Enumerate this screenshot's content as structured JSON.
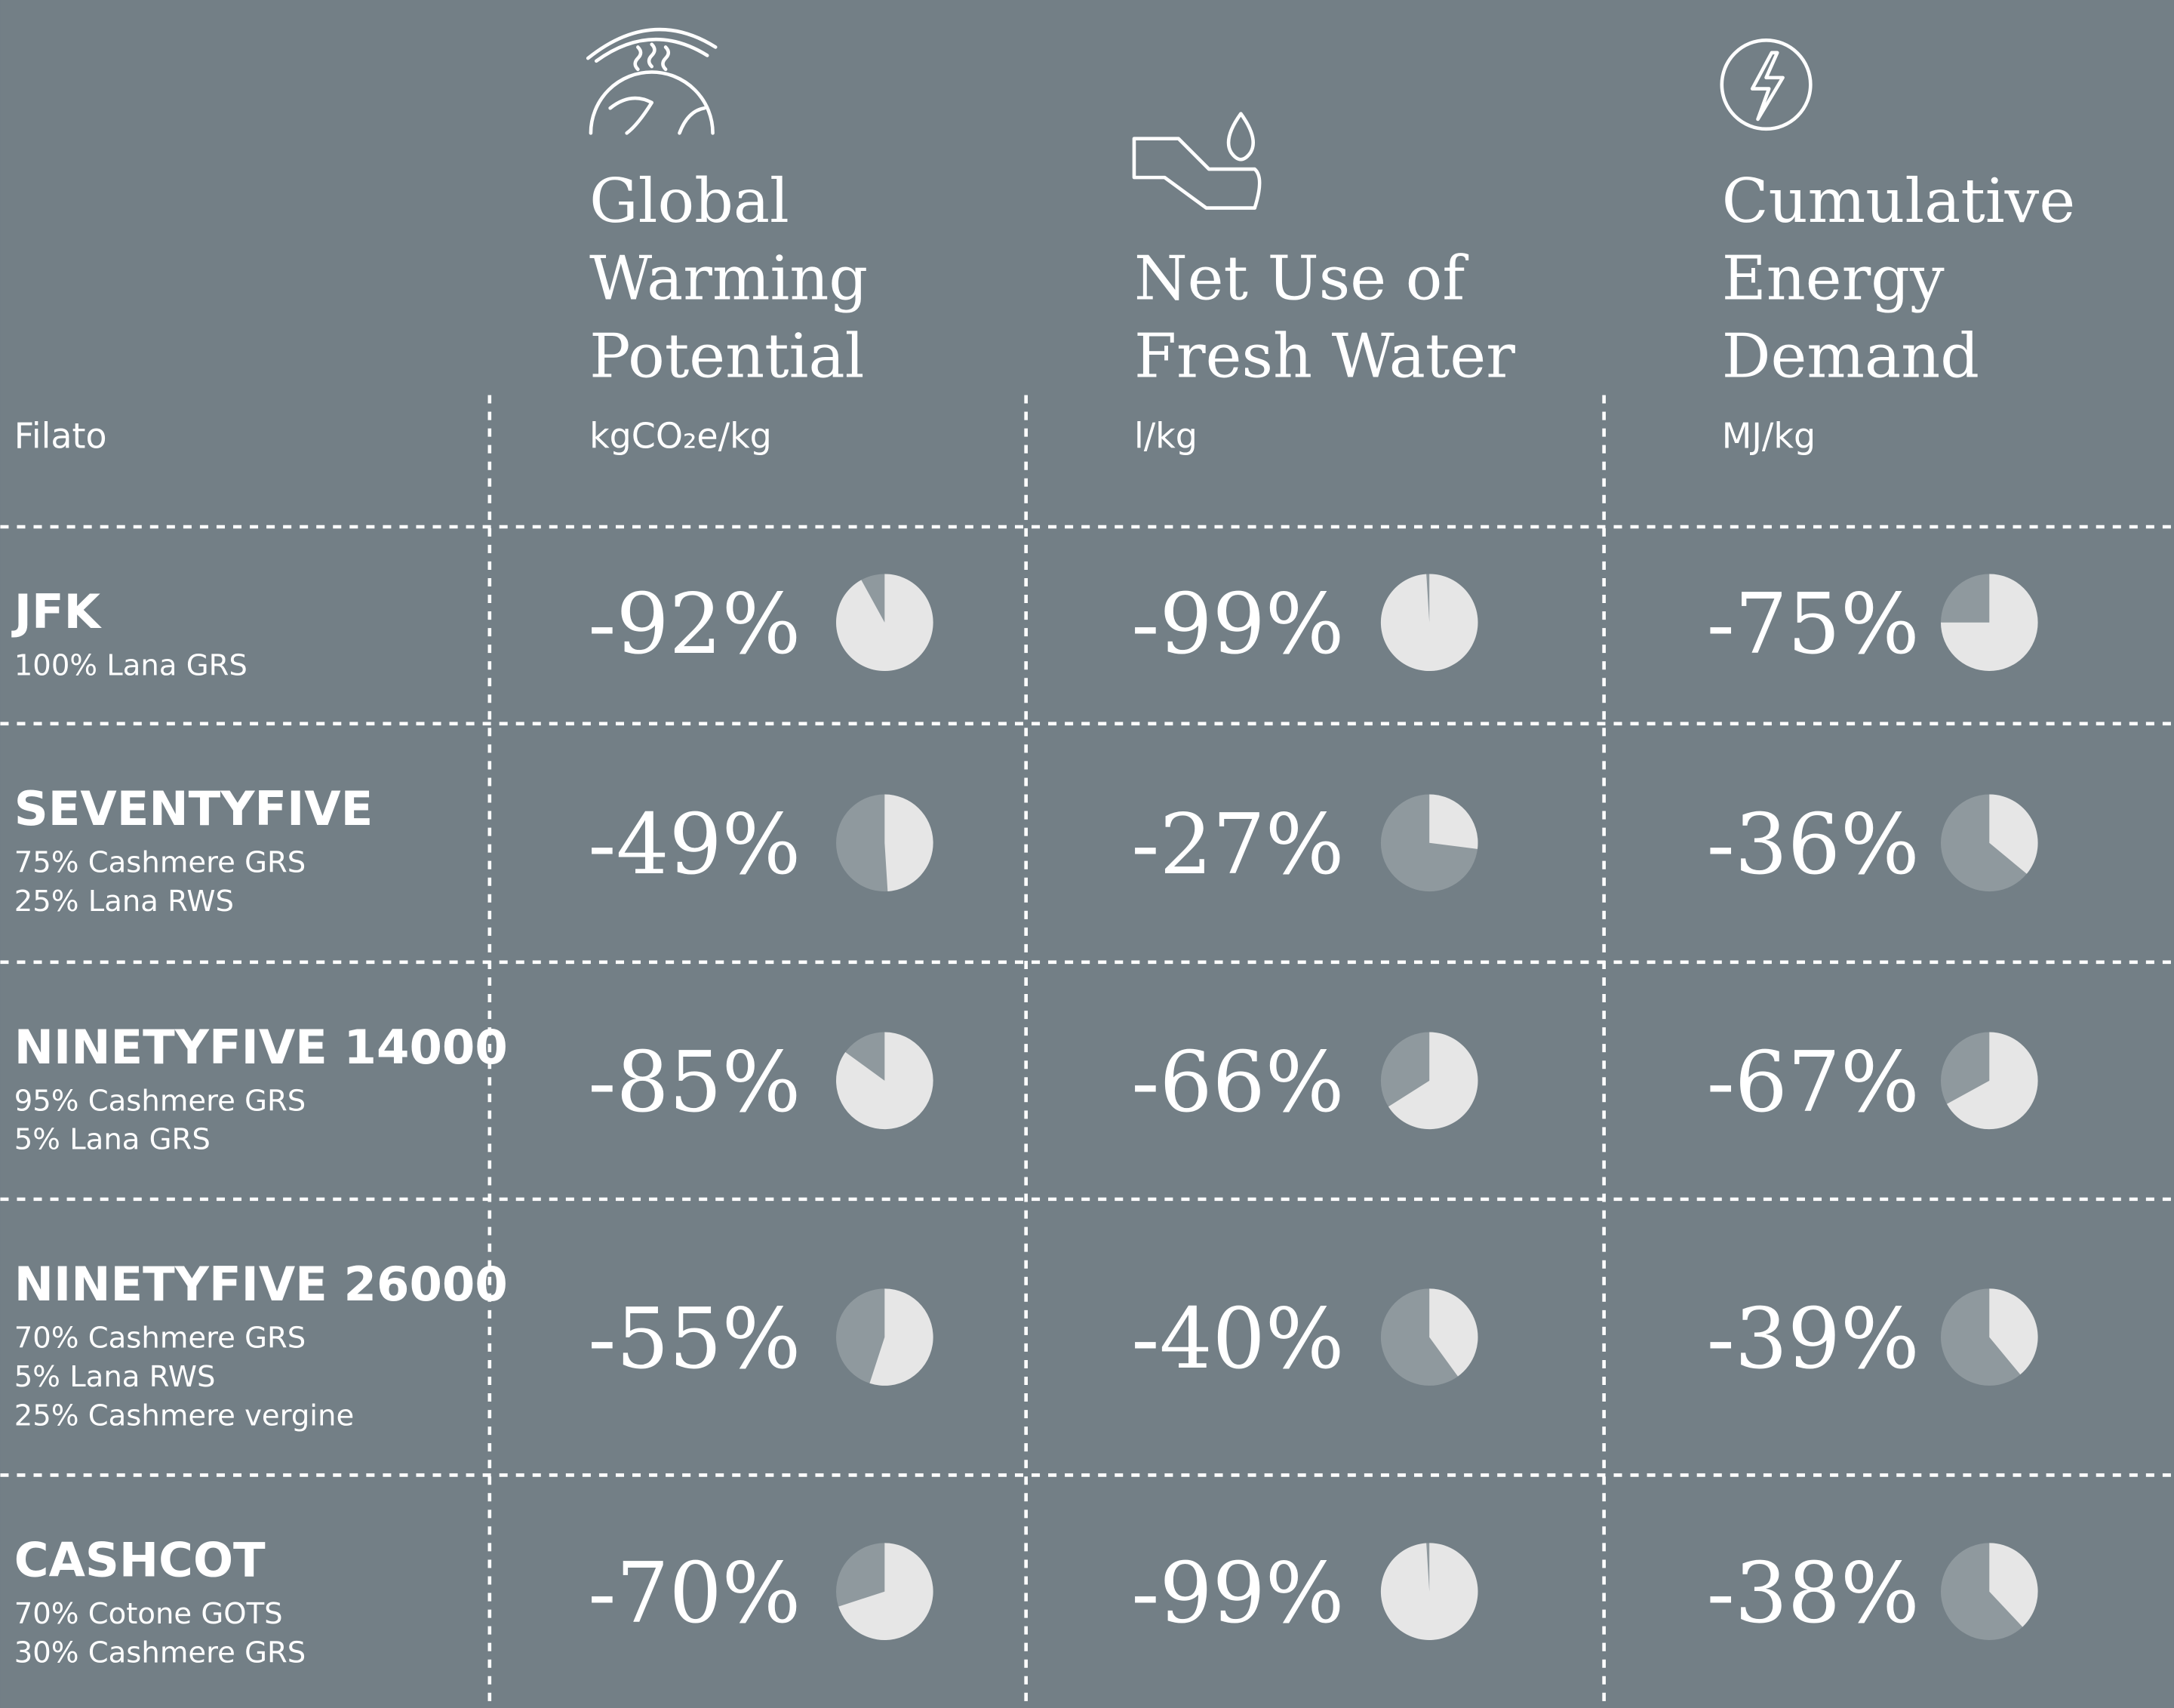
{
  "header": {
    "row_label": "Filato",
    "columns": [
      {
        "title": [
          "Global",
          "Warming",
          "Potential"
        ],
        "unit": "kgCO₂e/kg"
      },
      {
        "title": [
          "Net Use of",
          "Fresh Water"
        ],
        "unit": "l/kg"
      },
      {
        "title": [
          "Cumulative",
          "Energy",
          "Demand"
        ],
        "unit": "MJ/kg"
      }
    ]
  },
  "table": {
    "rows": [
      {
        "name": "JFK",
        "composition": [
          "100% Lana GRS"
        ],
        "cells": [
          {
            "value": -92,
            "label": "-92%"
          },
          {
            "value": -99,
            "label": "-99%"
          },
          {
            "value": -75,
            "label": "-75%"
          }
        ]
      },
      {
        "name": "SEVENTYFIVE",
        "composition": [
          "75% Cashmere GRS",
          "25% Lana RWS"
        ],
        "cells": [
          {
            "value": -49,
            "label": "-49%"
          },
          {
            "value": -27,
            "label": "-27%"
          },
          {
            "value": -36,
            "label": "-36%"
          }
        ]
      },
      {
        "name": "NINETYFIVE 14000",
        "composition": [
          "95% Cashmere GRS",
          "5% Lana GRS"
        ],
        "cells": [
          {
            "value": -85,
            "label": "-85%"
          },
          {
            "value": -66,
            "label": "-66%"
          },
          {
            "value": -67,
            "label": "-67%"
          }
        ]
      },
      {
        "name": "NINETYFIVE 26000",
        "composition": [
          "70% Cashmere GRS",
          "5% Lana RWS",
          "25% Cashmere vergine"
        ],
        "cells": [
          {
            "value": -55,
            "label": "-55%"
          },
          {
            "value": -40,
            "label": "-40%"
          },
          {
            "value": -39,
            "label": "-39%"
          }
        ]
      },
      {
        "name": "CASHCOT",
        "composition": [
          "70% Cotone GOTS",
          "30% Cashmere GRS"
        ],
        "cells": [
          {
            "value": -70,
            "label": "-70%"
          },
          {
            "value": -99,
            "label": "-99%"
          },
          {
            "value": -38,
            "label": "-38%"
          }
        ]
      }
    ]
  }
}
